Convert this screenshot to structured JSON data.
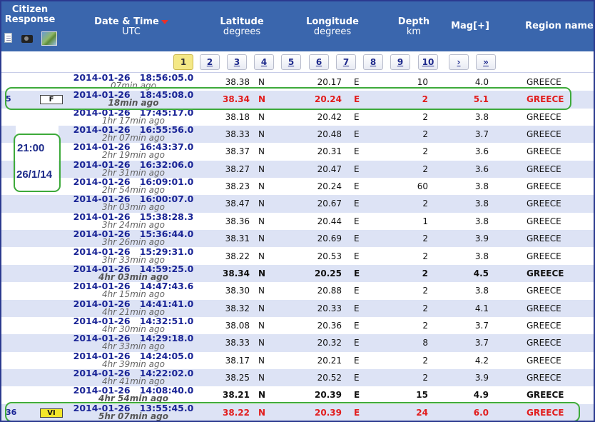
{
  "header": {
    "citizen_response": "Citizen Response",
    "date_time": "Date & Time",
    "utc": "UTC",
    "latitude": "Latitude",
    "latitude_unit": "degrees",
    "longitude": "Longitude",
    "longitude_unit": "degrees",
    "depth": "Depth",
    "depth_unit": "km",
    "mag": "Mag[+]",
    "region": "Region name"
  },
  "pager": [
    "1",
    "2",
    "3",
    "4",
    "5",
    "6",
    "7",
    "8",
    "9",
    "10",
    "›",
    "»"
  ],
  "rows": [
    {
      "date": "2014-01-26",
      "time": "18:56:05.0",
      "ago": "07min ago",
      "lat": "38.38",
      "ns": "N",
      "lon": "20.17",
      "ew": "E",
      "depth": "10",
      "mag": "4.0",
      "region": "GREECE",
      "style": "",
      "cr_num": "",
      "cr_badge": ""
    },
    {
      "date": "2014-01-26",
      "time": "18:45:08.0",
      "ago": "18min ago",
      "lat": "38.34",
      "ns": "N",
      "lon": "20.24",
      "ew": "E",
      "depth": "2",
      "mag": "5.1",
      "region": "GREECE",
      "style": "red",
      "cr_num": "5",
      "cr_badge": "F"
    },
    {
      "date": "2014-01-26",
      "time": "17:45:17.0",
      "ago": "1hr 17min ago",
      "lat": "38.18",
      "ns": "N",
      "lon": "20.42",
      "ew": "E",
      "depth": "2",
      "mag": "3.8",
      "region": "GREECE",
      "style": "",
      "cr_num": "",
      "cr_badge": ""
    },
    {
      "date": "2014-01-26",
      "time": "16:55:56.0",
      "ago": "2hr 07min ago",
      "lat": "38.33",
      "ns": "N",
      "lon": "20.48",
      "ew": "E",
      "depth": "2",
      "mag": "3.7",
      "region": "GREECE",
      "style": "",
      "cr_num": "",
      "cr_badge": ""
    },
    {
      "date": "2014-01-26",
      "time": "16:43:37.0",
      "ago": "2hr 19min ago",
      "lat": "38.37",
      "ns": "N",
      "lon": "20.31",
      "ew": "E",
      "depth": "2",
      "mag": "3.6",
      "region": "GREECE",
      "style": "",
      "cr_num": "",
      "cr_badge": ""
    },
    {
      "date": "2014-01-26",
      "time": "16:32:06.0",
      "ago": "2hr 31min ago",
      "lat": "38.27",
      "ns": "N",
      "lon": "20.47",
      "ew": "E",
      "depth": "2",
      "mag": "3.6",
      "region": "GREECE",
      "style": "",
      "cr_num": "",
      "cr_badge": ""
    },
    {
      "date": "2014-01-26",
      "time": "16:09:01.0",
      "ago": "2hr 54min ago",
      "lat": "38.23",
      "ns": "N",
      "lon": "20.24",
      "ew": "E",
      "depth": "60",
      "mag": "3.8",
      "region": "GREECE",
      "style": "",
      "cr_num": "",
      "cr_badge": ""
    },
    {
      "date": "2014-01-26",
      "time": "16:00:07.0",
      "ago": "3hr 03min ago",
      "lat": "38.47",
      "ns": "N",
      "lon": "20.67",
      "ew": "E",
      "depth": "2",
      "mag": "3.8",
      "region": "GREECE",
      "style": "",
      "cr_num": "",
      "cr_badge": ""
    },
    {
      "date": "2014-01-26",
      "time": "15:38:28.3",
      "ago": "3hr 24min ago",
      "lat": "38.36",
      "ns": "N",
      "lon": "20.44",
      "ew": "E",
      "depth": "1",
      "mag": "3.8",
      "region": "GREECE",
      "style": "",
      "cr_num": "",
      "cr_badge": ""
    },
    {
      "date": "2014-01-26",
      "time": "15:36:44.0",
      "ago": "3hr 26min ago",
      "lat": "38.31",
      "ns": "N",
      "lon": "20.69",
      "ew": "E",
      "depth": "2",
      "mag": "3.9",
      "region": "GREECE",
      "style": "",
      "cr_num": "",
      "cr_badge": ""
    },
    {
      "date": "2014-01-26",
      "time": "15:29:31.0",
      "ago": "3hr 33min ago",
      "lat": "38.22",
      "ns": "N",
      "lon": "20.53",
      "ew": "E",
      "depth": "2",
      "mag": "3.8",
      "region": "GREECE",
      "style": "",
      "cr_num": "",
      "cr_badge": ""
    },
    {
      "date": "2014-01-26",
      "time": "14:59:25.0",
      "ago": "4hr 03min ago",
      "lat": "38.34",
      "ns": "N",
      "lon": "20.25",
      "ew": "E",
      "depth": "2",
      "mag": "4.5",
      "region": "GREECE",
      "style": "bold",
      "cr_num": "",
      "cr_badge": ""
    },
    {
      "date": "2014-01-26",
      "time": "14:47:43.6",
      "ago": "4hr 15min ago",
      "lat": "38.30",
      "ns": "N",
      "lon": "20.88",
      "ew": "E",
      "depth": "2",
      "mag": "3.8",
      "region": "GREECE",
      "style": "",
      "cr_num": "",
      "cr_badge": ""
    },
    {
      "date": "2014-01-26",
      "time": "14:41:41.0",
      "ago": "4hr 21min ago",
      "lat": "38.32",
      "ns": "N",
      "lon": "20.33",
      "ew": "E",
      "depth": "2",
      "mag": "4.1",
      "region": "GREECE",
      "style": "",
      "cr_num": "",
      "cr_badge": ""
    },
    {
      "date": "2014-01-26",
      "time": "14:32:51.0",
      "ago": "4hr 30min ago",
      "lat": "38.08",
      "ns": "N",
      "lon": "20.36",
      "ew": "E",
      "depth": "2",
      "mag": "3.7",
      "region": "GREECE",
      "style": "",
      "cr_num": "",
      "cr_badge": ""
    },
    {
      "date": "2014-01-26",
      "time": "14:29:18.0",
      "ago": "4hr 33min ago",
      "lat": "38.33",
      "ns": "N",
      "lon": "20.32",
      "ew": "E",
      "depth": "8",
      "mag": "3.7",
      "region": "GREECE",
      "style": "",
      "cr_num": "",
      "cr_badge": ""
    },
    {
      "date": "2014-01-26",
      "time": "14:24:05.0",
      "ago": "4hr 39min ago",
      "lat": "38.17",
      "ns": "N",
      "lon": "20.21",
      "ew": "E",
      "depth": "2",
      "mag": "4.2",
      "region": "GREECE",
      "style": "",
      "cr_num": "",
      "cr_badge": ""
    },
    {
      "date": "2014-01-26",
      "time": "14:22:02.0",
      "ago": "4hr 41min ago",
      "lat": "38.25",
      "ns": "N",
      "lon": "20.52",
      "ew": "E",
      "depth": "2",
      "mag": "3.9",
      "region": "GREECE",
      "style": "",
      "cr_num": "",
      "cr_badge": ""
    },
    {
      "date": "2014-01-26",
      "time": "14:08:40.0",
      "ago": "4hr 54min ago",
      "lat": "38.21",
      "ns": "N",
      "lon": "20.39",
      "ew": "E",
      "depth": "15",
      "mag": "4.9",
      "region": "GREECE",
      "style": "bold",
      "cr_num": "",
      "cr_badge": ""
    },
    {
      "date": "2014-01-26",
      "time": "13:55:45.0",
      "ago": "5hr 07min ago",
      "lat": "38.22",
      "ns": "N",
      "lon": "20.39",
      "ew": "E",
      "depth": "24",
      "mag": "6.0",
      "region": "GREECE",
      "style": "red",
      "cr_num": "36",
      "cr_badge": "VI"
    }
  ],
  "annotation": {
    "time": "21:00",
    "date": "26/1/14"
  },
  "colors": {
    "header_bg": "#3a66ad",
    "alt_row": "#dde3f5",
    "highlight_red": "#e21d1d",
    "annotation_green": "#3daa3a",
    "active_page": "#f4e886"
  }
}
